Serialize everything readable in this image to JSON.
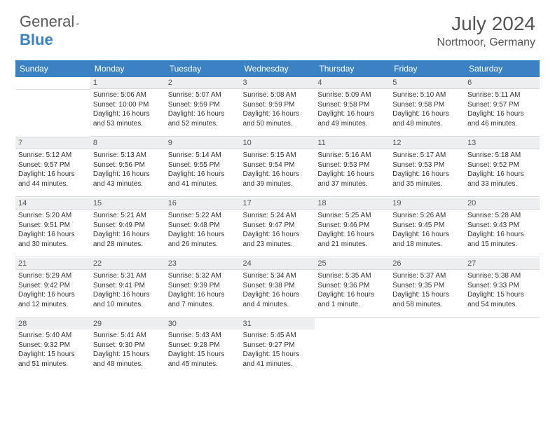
{
  "logo": {
    "word1": "General",
    "word2": "Blue"
  },
  "title": "July 2024",
  "location": "Nortmoor, Germany",
  "colors": {
    "header_bg": "#3b82c4",
    "daynum_bg": "#eceef0",
    "text": "#555555",
    "grid": "#d8dade"
  },
  "weekdays": [
    "Sunday",
    "Monday",
    "Tuesday",
    "Wednesday",
    "Thursday",
    "Friday",
    "Saturday"
  ],
  "weeks": [
    [
      {
        "n": "",
        "sr": "",
        "ss": "",
        "dl": ""
      },
      {
        "n": "1",
        "sr": "Sunrise: 5:06 AM",
        "ss": "Sunset: 10:00 PM",
        "dl": "Daylight: 16 hours and 53 minutes."
      },
      {
        "n": "2",
        "sr": "Sunrise: 5:07 AM",
        "ss": "Sunset: 9:59 PM",
        "dl": "Daylight: 16 hours and 52 minutes."
      },
      {
        "n": "3",
        "sr": "Sunrise: 5:08 AM",
        "ss": "Sunset: 9:59 PM",
        "dl": "Daylight: 16 hours and 50 minutes."
      },
      {
        "n": "4",
        "sr": "Sunrise: 5:09 AM",
        "ss": "Sunset: 9:58 PM",
        "dl": "Daylight: 16 hours and 49 minutes."
      },
      {
        "n": "5",
        "sr": "Sunrise: 5:10 AM",
        "ss": "Sunset: 9:58 PM",
        "dl": "Daylight: 16 hours and 48 minutes."
      },
      {
        "n": "6",
        "sr": "Sunrise: 5:11 AM",
        "ss": "Sunset: 9:57 PM",
        "dl": "Daylight: 16 hours and 46 minutes."
      }
    ],
    [
      {
        "n": "7",
        "sr": "Sunrise: 5:12 AM",
        "ss": "Sunset: 9:57 PM",
        "dl": "Daylight: 16 hours and 44 minutes."
      },
      {
        "n": "8",
        "sr": "Sunrise: 5:13 AM",
        "ss": "Sunset: 9:56 PM",
        "dl": "Daylight: 16 hours and 43 minutes."
      },
      {
        "n": "9",
        "sr": "Sunrise: 5:14 AM",
        "ss": "Sunset: 9:55 PM",
        "dl": "Daylight: 16 hours and 41 minutes."
      },
      {
        "n": "10",
        "sr": "Sunrise: 5:15 AM",
        "ss": "Sunset: 9:54 PM",
        "dl": "Daylight: 16 hours and 39 minutes."
      },
      {
        "n": "11",
        "sr": "Sunrise: 5:16 AM",
        "ss": "Sunset: 9:53 PM",
        "dl": "Daylight: 16 hours and 37 minutes."
      },
      {
        "n": "12",
        "sr": "Sunrise: 5:17 AM",
        "ss": "Sunset: 9:53 PM",
        "dl": "Daylight: 16 hours and 35 minutes."
      },
      {
        "n": "13",
        "sr": "Sunrise: 5:18 AM",
        "ss": "Sunset: 9:52 PM",
        "dl": "Daylight: 16 hours and 33 minutes."
      }
    ],
    [
      {
        "n": "14",
        "sr": "Sunrise: 5:20 AM",
        "ss": "Sunset: 9:51 PM",
        "dl": "Daylight: 16 hours and 30 minutes."
      },
      {
        "n": "15",
        "sr": "Sunrise: 5:21 AM",
        "ss": "Sunset: 9:49 PM",
        "dl": "Daylight: 16 hours and 28 minutes."
      },
      {
        "n": "16",
        "sr": "Sunrise: 5:22 AM",
        "ss": "Sunset: 9:48 PM",
        "dl": "Daylight: 16 hours and 26 minutes."
      },
      {
        "n": "17",
        "sr": "Sunrise: 5:24 AM",
        "ss": "Sunset: 9:47 PM",
        "dl": "Daylight: 16 hours and 23 minutes."
      },
      {
        "n": "18",
        "sr": "Sunrise: 5:25 AM",
        "ss": "Sunset: 9:46 PM",
        "dl": "Daylight: 16 hours and 21 minutes."
      },
      {
        "n": "19",
        "sr": "Sunrise: 5:26 AM",
        "ss": "Sunset: 9:45 PM",
        "dl": "Daylight: 16 hours and 18 minutes."
      },
      {
        "n": "20",
        "sr": "Sunrise: 5:28 AM",
        "ss": "Sunset: 9:43 PM",
        "dl": "Daylight: 16 hours and 15 minutes."
      }
    ],
    [
      {
        "n": "21",
        "sr": "Sunrise: 5:29 AM",
        "ss": "Sunset: 9:42 PM",
        "dl": "Daylight: 16 hours and 12 minutes."
      },
      {
        "n": "22",
        "sr": "Sunrise: 5:31 AM",
        "ss": "Sunset: 9:41 PM",
        "dl": "Daylight: 16 hours and 10 minutes."
      },
      {
        "n": "23",
        "sr": "Sunrise: 5:32 AM",
        "ss": "Sunset: 9:39 PM",
        "dl": "Daylight: 16 hours and 7 minutes."
      },
      {
        "n": "24",
        "sr": "Sunrise: 5:34 AM",
        "ss": "Sunset: 9:38 PM",
        "dl": "Daylight: 16 hours and 4 minutes."
      },
      {
        "n": "25",
        "sr": "Sunrise: 5:35 AM",
        "ss": "Sunset: 9:36 PM",
        "dl": "Daylight: 16 hours and 1 minute."
      },
      {
        "n": "26",
        "sr": "Sunrise: 5:37 AM",
        "ss": "Sunset: 9:35 PM",
        "dl": "Daylight: 15 hours and 58 minutes."
      },
      {
        "n": "27",
        "sr": "Sunrise: 5:38 AM",
        "ss": "Sunset: 9:33 PM",
        "dl": "Daylight: 15 hours and 54 minutes."
      }
    ],
    [
      {
        "n": "28",
        "sr": "Sunrise: 5:40 AM",
        "ss": "Sunset: 9:32 PM",
        "dl": "Daylight: 15 hours and 51 minutes."
      },
      {
        "n": "29",
        "sr": "Sunrise: 5:41 AM",
        "ss": "Sunset: 9:30 PM",
        "dl": "Daylight: 15 hours and 48 minutes."
      },
      {
        "n": "30",
        "sr": "Sunrise: 5:43 AM",
        "ss": "Sunset: 9:28 PM",
        "dl": "Daylight: 15 hours and 45 minutes."
      },
      {
        "n": "31",
        "sr": "Sunrise: 5:45 AM",
        "ss": "Sunset: 9:27 PM",
        "dl": "Daylight: 15 hours and 41 minutes."
      },
      {
        "n": "",
        "sr": "",
        "ss": "",
        "dl": ""
      },
      {
        "n": "",
        "sr": "",
        "ss": "",
        "dl": ""
      },
      {
        "n": "",
        "sr": "",
        "ss": "",
        "dl": ""
      }
    ]
  ]
}
